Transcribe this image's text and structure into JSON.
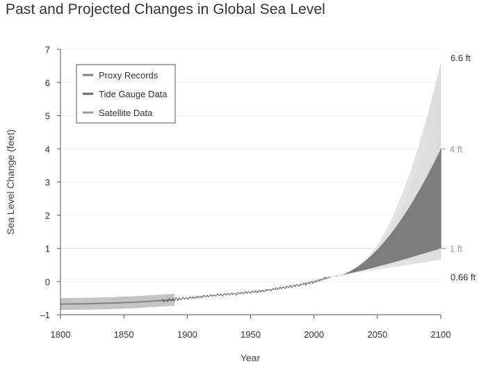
{
  "title": "Past and Projected Changes in Global Sea Level",
  "colors": {
    "axis": "#555555",
    "text": "#333333",
    "grid": "#eeeeee",
    "likely_range": "#7d7d7e",
    "scenario_fan": "#dcdcdc",
    "proxy_band": "#c4c4c4",
    "proxy_line": "#808080",
    "tide_line": "#606060",
    "satellite_line": "#9a9a9a",
    "gray_label": "#9a9a9a"
  },
  "chart_data": {
    "type": "line",
    "xlabel": "Year",
    "ylabel": "Sea Level Change (feet)",
    "xlim": [
      1800,
      2100
    ],
    "ylim": [
      -1,
      7
    ],
    "x_ticks": [
      "1800",
      "1850",
      "1900",
      "1950",
      "2000",
      "2050",
      "2100"
    ],
    "y_ticks": [
      "–1",
      "0",
      "1",
      "2",
      "3",
      "4",
      "5",
      "6",
      "7"
    ],
    "grid": true,
    "legend_position": "top-left",
    "legend": [
      "Proxy Records",
      "Tide Gauge Data",
      "Satellite Data"
    ],
    "series": [
      {
        "name": "Proxy Records",
        "x": [
          1800,
          1820,
          1840,
          1860,
          1880,
          1890
        ],
        "y": [
          -0.68,
          -0.67,
          -0.65,
          -0.62,
          -0.57,
          -0.55
        ],
        "band_half_width": 0.18
      },
      {
        "name": "Tide Gauge Data",
        "x": [
          1880,
          1900,
          1920,
          1940,
          1960,
          1980,
          2000,
          2010
        ],
        "y": [
          -0.58,
          -0.5,
          -0.42,
          -0.36,
          -0.28,
          -0.16,
          -0.02,
          0.12
        ]
      },
      {
        "name": "Satellite Data",
        "x": [
          1993,
          2000,
          2005,
          2010,
          2013
        ],
        "y": [
          -0.06,
          0.0,
          0.05,
          0.1,
          0.14
        ]
      }
    ],
    "projection": {
      "start_year": 2013,
      "start_value": 0.14,
      "end_year": 2100,
      "likely_low": 1.0,
      "likely_high": 4.0,
      "scenario_low": 0.66,
      "scenario_high": 6.6
    },
    "annotations": [
      {
        "label": "6.6 ft",
        "value": 6.6
      },
      {
        "label": "4 ft",
        "value": 4
      },
      {
        "label": "1 ft",
        "value": 1
      },
      {
        "label": "0.66 ft",
        "value": 0.66
      }
    ]
  }
}
